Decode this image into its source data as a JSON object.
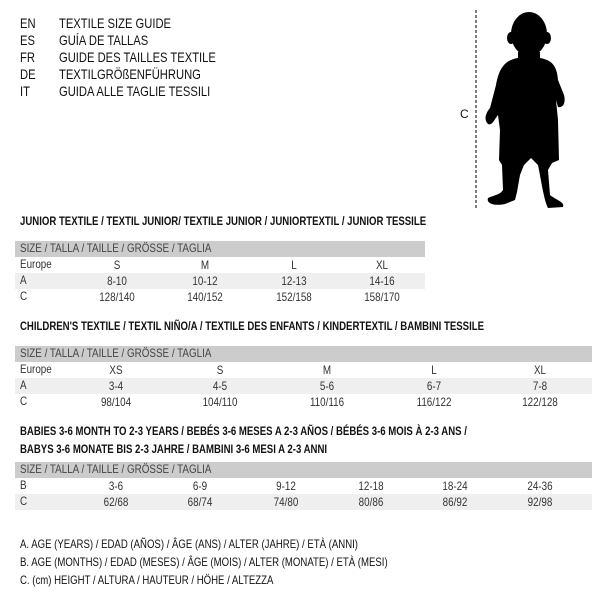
{
  "languages": [
    {
      "code": "EN",
      "label": "TEXTILE SIZE GUIDE"
    },
    {
      "code": "ES",
      "label": "GUÍA DE TALLAS"
    },
    {
      "code": "FR",
      "label": "GUIDE DES TAILLES TEXTILE"
    },
    {
      "code": "DE",
      "label": "TEXTILGRÖßENFÜHRUNG"
    },
    {
      "code": "IT",
      "label": "GUIDA ALLE TAGLIE TESSILI"
    }
  ],
  "figure": {
    "measure_label": "C",
    "icon": "baby-silhouette"
  },
  "tables": [
    {
      "title": "JUNIOR TEXTILE / TEXTIL JUNIOR/ TEXTILE JUNIOR / JUNIORTEXTIL / JUNIOR TESSILE",
      "header": "SIZE / TALLA / TAILLE / GRÖSSE / TAGLIA",
      "rows": [
        {
          "label": "Europe",
          "values": [
            "S",
            "M",
            "L",
            "XL"
          ]
        },
        {
          "label": "A",
          "values": [
            "8-10",
            "10-12",
            "12-13",
            "14-16"
          ]
        },
        {
          "label": "C",
          "values": [
            "128/140",
            "140/152",
            "152/158",
            "158/170"
          ]
        }
      ]
    },
    {
      "title": "CHILDREN'S TEXTILE / TEXTIL NIÑO/A / TEXTILE DES ENFANTS / KINDERTEXTIL / BAMBINI TESSILE",
      "header": "SIZE / TALLA / TAILLE / GRÖSSE / TAGLIA",
      "rows": [
        {
          "label": "Europe",
          "values": [
            "XS",
            "S",
            "M",
            "L",
            "XL"
          ]
        },
        {
          "label": "A",
          "values": [
            "3-4",
            "4-5",
            "5-6",
            "6-7",
            "7-8"
          ]
        },
        {
          "label": "C",
          "values": [
            "98/104",
            "104/110",
            "110/116",
            "116/122",
            "122/128"
          ]
        }
      ]
    },
    {
      "title": "BABIES 3-6 MONTH TO 2-3 YEARS / BEBÉS 3-6 MESES A 2-3 AÑOS / BÉBÉS 3-6 MOIS À 2-3 ANS /",
      "title2": "BABYS 3-6 MONATE BIS 2-3 JAHRE / BAMBINI 3-6 MESI A 2-3 ANNI",
      "header": "SIZE / TALLA / TAILLE / GRÖSSE / TAGLIA",
      "rows": [
        {
          "label": "B",
          "values": [
            "3-6",
            "6-9",
            "9-12",
            "12-18",
            "18-24",
            "24-36"
          ]
        },
        {
          "label": "C",
          "values": [
            "62/68",
            "68/74",
            "74/80",
            "80/86",
            "86/92",
            "92/98"
          ]
        }
      ]
    }
  ],
  "legend": [
    "A. AGE (YEARS) / EDAD (AÑOS) / ÂGE (ANS) / ALTER (JAHRE) / ETÀ (ANNI)",
    "B. AGE (MONTHS) / EDAD (MESES) / ÂGE (MOIS) / ALTER (MONATE) / ETÀ (MESI)",
    "C. (cm) HEIGHT / ALTURA / HAUTEUR / HÖHE / ALTEZZA"
  ]
}
